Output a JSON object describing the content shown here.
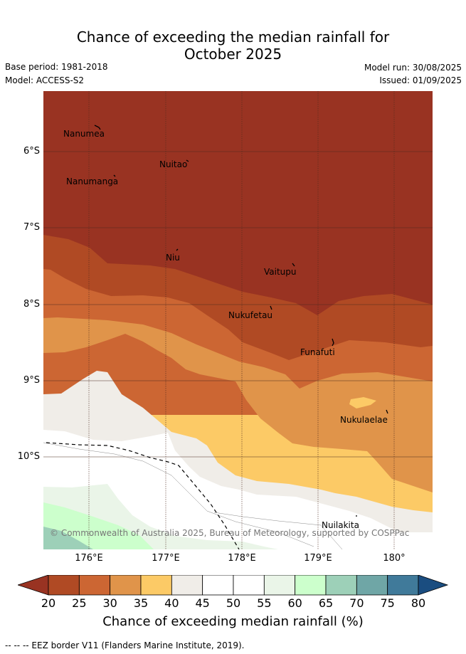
{
  "title_line1": "Chance of exceeding the median rainfall for",
  "title_line2": "October 2025",
  "meta": {
    "base_period": "Base period: 1981-2018",
    "model": "Model: ACCESS-S2",
    "model_run": "Model run: 30/08/2025",
    "issued": "Issued: 01/09/2025"
  },
  "axes": {
    "lat_labels": [
      "6°S",
      "7°S",
      "8°S",
      "9°S",
      "10°S"
    ],
    "lon_labels": [
      "176°E",
      "177°E",
      "178°E",
      "179°E",
      "180°"
    ]
  },
  "places": [
    "Nanumea",
    "Nuitao",
    "Nanumanga",
    "Niu",
    "Vaitupu",
    "Nukufetau",
    "Funafuti",
    "Nukulaelae",
    "Nuilakita"
  ],
  "copyright": "© Commonwealth of Australia 2025, Bureau of Meteorology, supported by COSPPac",
  "colorbar": {
    "ticks": [
      "20",
      "25",
      "30",
      "35",
      "40",
      "45",
      "50",
      "55",
      "60",
      "65",
      "70",
      "75",
      "80"
    ],
    "label": "Chance of exceeding median rainfall (%)",
    "colors": [
      "#b04a24",
      "#cc6633",
      "#e0944a",
      "#fcca66",
      "#f0ede8",
      "#ffffff",
      "#ffffff",
      "#eaf5e8",
      "#ccffcc",
      "#9dd0b8",
      "#6fa6a6",
      "#407a9a"
    ],
    "low_extend_color": "#993322",
    "high_extend_color": "#1a4d80"
  },
  "footnote": "-- -- -- EEZ border V11 (Flanders Marine Institute, 2019)."
}
